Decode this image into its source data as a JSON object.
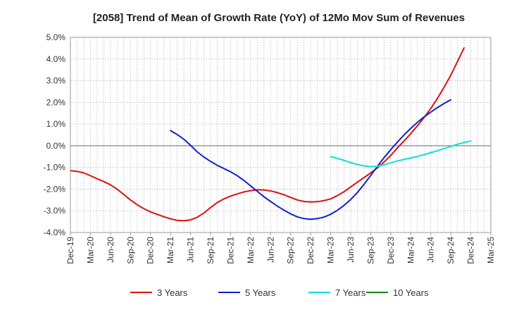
{
  "chart_data": {
    "type": "line",
    "title": "[2058]  Trend of Mean of Growth Rate (YoY) of 12Mo Mov Sum of Revenues",
    "xlabel": "",
    "ylabel": "",
    "ylim": [
      -4.0,
      5.0
    ],
    "y_ticks": [
      5.0,
      4.0,
      3.0,
      2.0,
      1.0,
      0.0,
      -1.0,
      -2.0,
      -3.0,
      -4.0
    ],
    "y_tick_labels": [
      "5.0%",
      "4.0%",
      "3.0%",
      "2.0%",
      "1.0%",
      "0.0%",
      "-1.0%",
      "-2.0%",
      "-3.0%",
      "-4.0%"
    ],
    "x_tick_labels": [
      "Dec-19",
      "Mar-20",
      "Jun-20",
      "Sep-20",
      "Dec-20",
      "Mar-21",
      "Jun-21",
      "Sep-21",
      "Dec-21",
      "Mar-22",
      "Jun-22",
      "Sep-22",
      "Dec-22",
      "Mar-23",
      "Jun-23",
      "Sep-23",
      "Dec-23",
      "Mar-24",
      "Jun-24",
      "Sep-24",
      "Dec-24",
      "Mar-25"
    ],
    "x_months": 63,
    "grid": true,
    "legend_position": "bottom",
    "series": [
      {
        "name": "3 Years",
        "color": "#dd1111",
        "start_month": 0,
        "values": [
          -1.15,
          -1.18,
          -1.25,
          -1.38,
          -1.52,
          -1.65,
          -1.8,
          -2.0,
          -2.25,
          -2.5,
          -2.72,
          -2.9,
          -3.05,
          -3.16,
          -3.27,
          -3.37,
          -3.44,
          -3.46,
          -3.42,
          -3.3,
          -3.1,
          -2.85,
          -2.62,
          -2.45,
          -2.32,
          -2.22,
          -2.13,
          -2.07,
          -2.03,
          -2.04,
          -2.08,
          -2.16,
          -2.26,
          -2.38,
          -2.5,
          -2.57,
          -2.59,
          -2.58,
          -2.53,
          -2.45,
          -2.3,
          -2.12,
          -1.9,
          -1.68,
          -1.47,
          -1.25,
          -1.02,
          -0.75,
          -0.45,
          -0.1,
          0.22,
          0.56,
          0.92,
          1.3,
          1.72,
          2.18,
          2.7,
          3.25,
          3.88,
          4.52
        ]
      },
      {
        "name": "5 Years",
        "color": "#1122cc",
        "start_month": 15,
        "values": [
          0.7,
          0.52,
          0.3,
          0.02,
          -0.28,
          -0.52,
          -0.72,
          -0.9,
          -1.05,
          -1.2,
          -1.38,
          -1.6,
          -1.85,
          -2.1,
          -2.35,
          -2.57,
          -2.78,
          -2.97,
          -3.14,
          -3.28,
          -3.36,
          -3.39,
          -3.36,
          -3.29,
          -3.16,
          -2.98,
          -2.75,
          -2.48,
          -2.16,
          -1.78,
          -1.37,
          -0.95,
          -0.55,
          -0.18,
          0.17,
          0.5,
          0.8,
          1.08,
          1.33,
          1.55,
          1.76,
          1.95,
          2.12
        ]
      },
      {
        "name": "7 Years",
        "color": "#11dddd",
        "start_month": 39,
        "values": [
          -0.5,
          -0.58,
          -0.67,
          -0.78,
          -0.86,
          -0.93,
          -0.96,
          -0.95,
          -0.88,
          -0.79,
          -0.7,
          -0.63,
          -0.56,
          -0.49,
          -0.41,
          -0.32,
          -0.23,
          -0.13,
          -0.03,
          0.07,
          0.15,
          0.22
        ]
      },
      {
        "name": "10 Years",
        "color": "#118811",
        "start_month": 63,
        "values": []
      }
    ]
  }
}
